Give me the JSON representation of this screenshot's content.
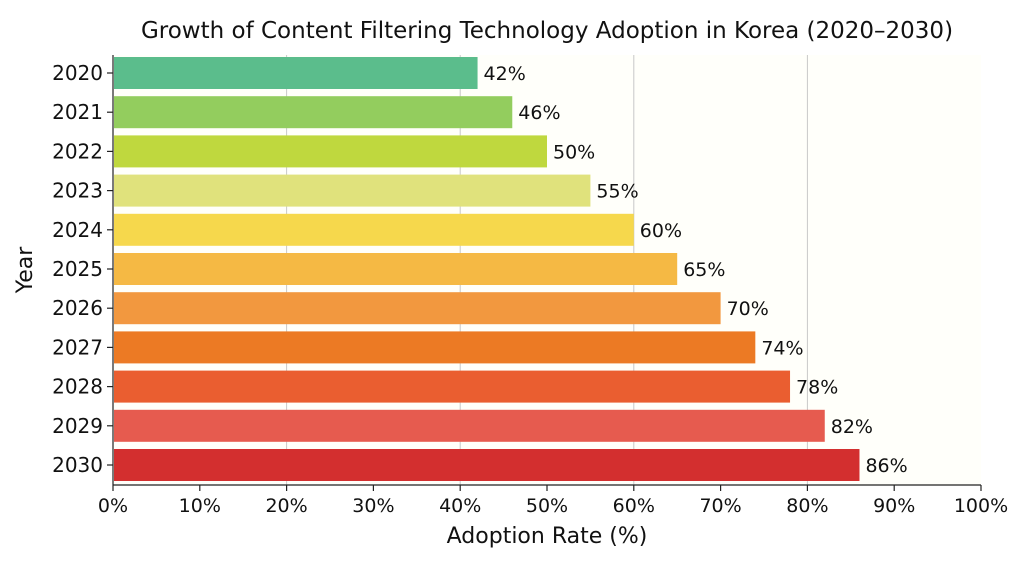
{
  "chart_data": {
    "type": "bar",
    "orientation": "horizontal",
    "title": "Growth of Content Filtering Technology Adoption in Korea (2020–2030)",
    "xlabel": "Adoption Rate (%)",
    "ylabel": "Year",
    "categories": [
      "2020",
      "2021",
      "2022",
      "2023",
      "2024",
      "2025",
      "2026",
      "2027",
      "2028",
      "2029",
      "2030"
    ],
    "values": [
      42,
      46,
      50,
      55,
      60,
      65,
      70,
      74,
      78,
      82,
      86
    ],
    "data_labels": [
      "42%",
      "46%",
      "50%",
      "55%",
      "60%",
      "65%",
      "70%",
      "74%",
      "78%",
      "82%",
      "86%"
    ],
    "colors": [
      "#5bbd8c",
      "#93cd5e",
      "#bfd83e",
      "#e0e27c",
      "#f6d84c",
      "#f5b944",
      "#f2983f",
      "#ec7a24",
      "#ea5e30",
      "#e65b4f",
      "#d32f2f"
    ],
    "xlim": [
      0,
      100
    ],
    "xticks": [
      0,
      10,
      20,
      30,
      40,
      50,
      60,
      70,
      80,
      90,
      100
    ],
    "xtick_labels": [
      "0%",
      "10%",
      "20%",
      "30%",
      "40%",
      "50%",
      "60%",
      "70%",
      "80%",
      "90%",
      "100%"
    ],
    "grid": "vertical at every 20%",
    "legend": "none"
  }
}
